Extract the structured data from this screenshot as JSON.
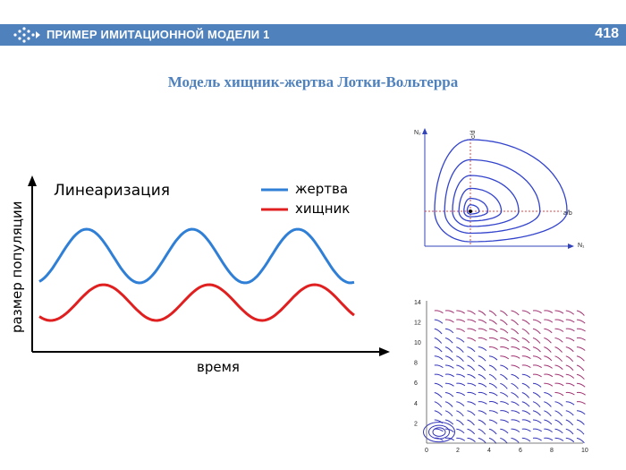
{
  "header": {
    "title": "ПРИМЕР ИМИТАЦИОННОЙ МОДЕЛИ 1",
    "page_number": "418"
  },
  "subtitle": "Модель хищник-жертва Лотки-Вольтерра",
  "left_chart": {
    "title": "Линеаризация",
    "xlabel": "время",
    "ylabel": "размер популяции",
    "legend": [
      {
        "name": "жертва",
        "color": "#2f7fd6"
      },
      {
        "name": "хищник",
        "color": "#e02020"
      }
    ]
  },
  "phase_plot": {
    "ylabel": "N₂",
    "xlabel": "N₁",
    "vline_label": "c/d",
    "hline_label": "a/b"
  },
  "field_plot": {
    "x_ticks": [
      "0",
      "2",
      "4",
      "6",
      "8",
      "10"
    ],
    "y_ticks": [
      "2",
      "4",
      "6",
      "8",
      "10",
      "12",
      "14"
    ]
  }
}
